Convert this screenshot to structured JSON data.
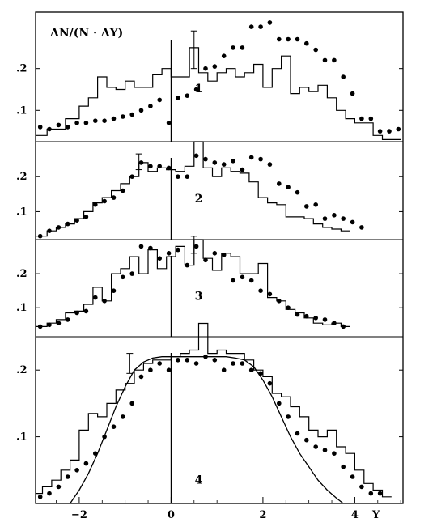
{
  "chart_data": {
    "type": "scatter",
    "title": "ΔN/(N · ΔY)",
    "xlabel": "Y",
    "xlim": [
      -2.95,
      5.05
    ],
    "x_ticks": [
      {
        "value": -2,
        "label": "−2"
      },
      {
        "value": 0,
        "label": "0"
      },
      {
        "value": 2,
        "label": "2"
      },
      {
        "value": 4,
        "label": "4"
      }
    ],
    "panels": [
      {
        "label": "1",
        "ylim": [
          0.025,
          0.335
        ],
        "y_ticks": [
          {
            "value": 0.1,
            "label": ".1"
          },
          {
            "value": 0.2,
            "label": ".2"
          }
        ],
        "histogram": {
          "edges": [
            -2.95,
            -2.7,
            -2.3,
            -2.0,
            -1.8,
            -1.6,
            -1.4,
            -1.2,
            -1.0,
            -0.8,
            -0.6,
            -0.4,
            -0.2,
            0.0,
            0.4,
            0.6,
            0.8,
            1.0,
            1.2,
            1.4,
            1.6,
            1.8,
            2.0,
            2.2,
            2.4,
            2.6,
            2.8,
            3.0,
            3.2,
            3.4,
            3.6,
            3.8,
            4.0,
            4.4,
            4.6,
            5.0
          ],
          "values": [
            0.04,
            0.055,
            0.08,
            0.11,
            0.13,
            0.18,
            0.155,
            0.15,
            0.17,
            0.155,
            0.155,
            0.185,
            0.2,
            0.18,
            0.25,
            0.19,
            0.17,
            0.19,
            0.2,
            0.18,
            0.19,
            0.21,
            0.155,
            0.2,
            0.23,
            0.14,
            0.155,
            0.145,
            0.16,
            0.13,
            0.1,
            0.08,
            0.07,
            0.04,
            0.03
          ]
        },
        "points": {
          "x": [
            -2.85,
            -2.65,
            -2.45,
            -2.25,
            -2.05,
            -1.85,
            -1.65,
            -1.45,
            -1.25,
            -1.05,
            -0.85,
            -0.65,
            -0.45,
            -0.25,
            -0.05,
            0.15,
            0.35,
            0.55,
            0.75,
            0.95,
            1.15,
            1.35,
            1.55,
            1.75,
            1.95,
            2.15,
            2.35,
            2.55,
            2.75,
            2.95,
            3.15,
            3.35,
            3.55,
            3.75,
            3.95,
            4.15,
            4.35,
            4.55,
            4.75,
            4.95
          ],
          "y": [
            0.06,
            0.055,
            0.065,
            0.06,
            0.07,
            0.07,
            0.075,
            0.075,
            0.08,
            0.085,
            0.09,
            0.1,
            0.11,
            0.125,
            0.07,
            0.13,
            0.135,
            0.15,
            0.2,
            0.205,
            0.23,
            0.25,
            0.25,
            0.3,
            0.3,
            0.31,
            0.27,
            0.27,
            0.27,
            0.26,
            0.245,
            0.22,
            0.22,
            0.18,
            0.14,
            0.08,
            0.08,
            0.05,
            0.05,
            0.055
          ]
        },
        "errorbar": {
          "x": 0.5,
          "y": 0.25,
          "low": 0.2,
          "high": 0.29
        }
      },
      {
        "label": "2",
        "ylim": [
          0.02,
          0.3
        ],
        "y_ticks": [
          {
            "value": 0.1,
            "label": ".1"
          },
          {
            "value": 0.2,
            "label": ".2"
          }
        ],
        "histogram": {
          "edges": [
            -2.95,
            -2.7,
            -2.5,
            -2.3,
            -2.1,
            -1.9,
            -1.7,
            -1.5,
            -1.3,
            -1.1,
            -0.9,
            -0.7,
            -0.5,
            -0.3,
            -0.1,
            0.1,
            0.3,
            0.5,
            0.7,
            0.9,
            1.1,
            1.3,
            1.5,
            1.7,
            1.9,
            2.1,
            2.3,
            2.5,
            2.7,
            2.9,
            3.1,
            3.3,
            3.5,
            3.7,
            3.9
          ],
          "values": [
            0.03,
            0.045,
            0.055,
            0.065,
            0.08,
            0.1,
            0.125,
            0.14,
            0.16,
            0.18,
            0.2,
            0.24,
            0.215,
            0.225,
            0.22,
            0.215,
            0.23,
            0.3,
            0.225,
            0.2,
            0.225,
            0.215,
            0.21,
            0.185,
            0.14,
            0.125,
            0.12,
            0.085,
            0.085,
            0.08,
            0.065,
            0.055,
            0.05,
            0.045
          ]
        },
        "points": {
          "x": [
            -2.85,
            -2.65,
            -2.45,
            -2.25,
            -2.05,
            -1.85,
            -1.65,
            -1.45,
            -1.25,
            -1.05,
            -0.85,
            -0.65,
            -0.45,
            -0.25,
            -0.05,
            0.15,
            0.35,
            0.55,
            0.75,
            0.95,
            1.15,
            1.35,
            1.55,
            1.75,
            1.95,
            2.15,
            2.35,
            2.55,
            2.75,
            2.95,
            3.15,
            3.35,
            3.55,
            3.75,
            3.95,
            4.15
          ],
          "y": [
            0.03,
            0.045,
            0.055,
            0.065,
            0.075,
            0.085,
            0.12,
            0.13,
            0.14,
            0.16,
            0.2,
            0.24,
            0.23,
            0.23,
            0.225,
            0.2,
            0.2,
            0.26,
            0.25,
            0.24,
            0.235,
            0.245,
            0.22,
            0.255,
            0.25,
            0.235,
            0.18,
            0.17,
            0.155,
            0.115,
            0.12,
            0.08,
            0.09,
            0.08,
            0.07,
            0.055
          ]
        },
        "errorbar": {
          "x": -0.7,
          "y": 0.24,
          "low": 0.22,
          "high": 0.265
        }
      },
      {
        "label": "3",
        "ylim": [
          0.015,
          0.3
        ],
        "y_ticks": [
          {
            "value": 0.1,
            "label": ".1"
          },
          {
            "value": 0.2,
            "label": ".2"
          }
        ],
        "histogram": {
          "edges": [
            -2.95,
            -2.7,
            -2.5,
            -2.3,
            -2.1,
            -1.9,
            -1.7,
            -1.5,
            -1.3,
            -1.1,
            -0.9,
            -0.7,
            -0.5,
            -0.3,
            -0.1,
            0.1,
            0.3,
            0.5,
            0.7,
            0.9,
            1.1,
            1.3,
            1.5,
            1.7,
            1.9,
            2.1,
            2.3,
            2.5,
            2.7,
            2.9,
            3.1,
            3.3,
            3.5,
            3.7,
            3.9
          ],
          "values": [
            0.045,
            0.055,
            0.065,
            0.085,
            0.09,
            0.11,
            0.16,
            0.12,
            0.2,
            0.215,
            0.25,
            0.2,
            0.27,
            0.215,
            0.25,
            0.28,
            0.225,
            0.3,
            0.245,
            0.21,
            0.26,
            0.25,
            0.2,
            0.2,
            0.23,
            0.13,
            0.12,
            0.095,
            0.085,
            0.07,
            0.055,
            0.05,
            0.055,
            0.045
          ]
        },
        "points": {
          "x": [
            -2.85,
            -2.65,
            -2.45,
            -2.25,
            -2.05,
            -1.85,
            -1.65,
            -1.45,
            -1.25,
            -1.05,
            -0.85,
            -0.65,
            -0.45,
            -0.25,
            -0.05,
            0.15,
            0.35,
            0.55,
            0.75,
            0.95,
            1.15,
            1.35,
            1.55,
            1.75,
            1.95,
            2.15,
            2.35,
            2.55,
            2.75,
            2.95,
            3.15,
            3.35,
            3.55,
            3.75
          ],
          "y": [
            0.045,
            0.05,
            0.055,
            0.065,
            0.085,
            0.09,
            0.13,
            0.12,
            0.15,
            0.19,
            0.2,
            0.28,
            0.275,
            0.245,
            0.26,
            0.27,
            0.225,
            0.28,
            0.24,
            0.26,
            0.255,
            0.18,
            0.19,
            0.18,
            0.15,
            0.14,
            0.12,
            0.1,
            0.08,
            0.075,
            0.07,
            0.065,
            0.055,
            0.045
          ]
        },
        "errorbar": {
          "x": 0.5,
          "y": 0.28,
          "low": 0.26,
          "high": 0.31
        }
      },
      {
        "label": "4",
        "ylim": [
          0.0,
          0.25
        ],
        "y_ticks": [
          {
            "value": 0.1,
            "label": ".1"
          },
          {
            "value": 0.2,
            "label": ".2"
          }
        ],
        "histogram": {
          "edges": [
            -2.95,
            -2.8,
            -2.6,
            -2.4,
            -2.2,
            -2.0,
            -1.8,
            -1.6,
            -1.4,
            -1.2,
            -1.0,
            -0.8,
            -0.6,
            -0.4,
            -0.2,
            0.0,
            0.2,
            0.4,
            0.6,
            0.8,
            1.0,
            1.2,
            1.4,
            1.6,
            1.8,
            2.0,
            2.2,
            2.4,
            2.6,
            2.8,
            3.0,
            3.2,
            3.4,
            3.6,
            3.8,
            4.0,
            4.2,
            4.4,
            4.6,
            4.8
          ],
          "values": [
            0.015,
            0.025,
            0.035,
            0.05,
            0.065,
            0.11,
            0.135,
            0.13,
            0.15,
            0.17,
            0.18,
            0.2,
            0.21,
            0.215,
            0.215,
            0.22,
            0.225,
            0.23,
            0.27,
            0.225,
            0.23,
            0.225,
            0.225,
            0.215,
            0.2,
            0.19,
            0.165,
            0.16,
            0.145,
            0.13,
            0.11,
            0.1,
            0.11,
            0.085,
            0.075,
            0.05,
            0.03,
            0.02,
            0.01
          ]
        },
        "points": {
          "x": [
            -2.85,
            -2.65,
            -2.45,
            -2.25,
            -2.05,
            -1.85,
            -1.65,
            -1.45,
            -1.25,
            -1.05,
            -0.85,
            -0.65,
            -0.45,
            -0.25,
            -0.05,
            0.15,
            0.35,
            0.55,
            0.75,
            0.95,
            1.15,
            1.35,
            1.55,
            1.75,
            1.95,
            2.15,
            2.35,
            2.55,
            2.75,
            2.95,
            3.15,
            3.35,
            3.55,
            3.75,
            3.95,
            4.15,
            4.35,
            4.55
          ],
          "y": [
            0.01,
            0.015,
            0.025,
            0.04,
            0.05,
            0.06,
            0.075,
            0.1,
            0.115,
            0.13,
            0.15,
            0.19,
            0.2,
            0.21,
            0.2,
            0.215,
            0.215,
            0.21,
            0.22,
            0.215,
            0.2,
            0.21,
            0.21,
            0.2,
            0.195,
            0.18,
            0.15,
            0.13,
            0.105,
            0.095,
            0.085,
            0.08,
            0.075,
            0.055,
            0.04,
            0.025,
            0.015,
            0.015
          ]
        },
        "errorbar": {
          "x": -0.9,
          "y": 0.21,
          "low": 0.195,
          "high": 0.225
        },
        "curve": {
          "x": [
            -2.2,
            -2.0,
            -1.8,
            -1.6,
            -1.4,
            -1.2,
            -1.0,
            -0.8,
            -0.6,
            -0.4,
            -0.2,
            0.0,
            0.2,
            0.4,
            0.6,
            0.8,
            1.0,
            1.2,
            1.4,
            1.6,
            1.8,
            2.0,
            2.2,
            2.4,
            2.6,
            2.8,
            3.0,
            3.2,
            3.4,
            3.6,
            3.75
          ],
          "y": [
            0.0,
            0.02,
            0.045,
            0.075,
            0.11,
            0.145,
            0.175,
            0.2,
            0.212,
            0.218,
            0.22,
            0.22,
            0.22,
            0.22,
            0.22,
            0.22,
            0.22,
            0.22,
            0.218,
            0.215,
            0.205,
            0.185,
            0.16,
            0.13,
            0.1,
            0.075,
            0.055,
            0.035,
            0.02,
            0.008,
            0.0
          ]
        }
      }
    ],
    "gridlines": false
  }
}
